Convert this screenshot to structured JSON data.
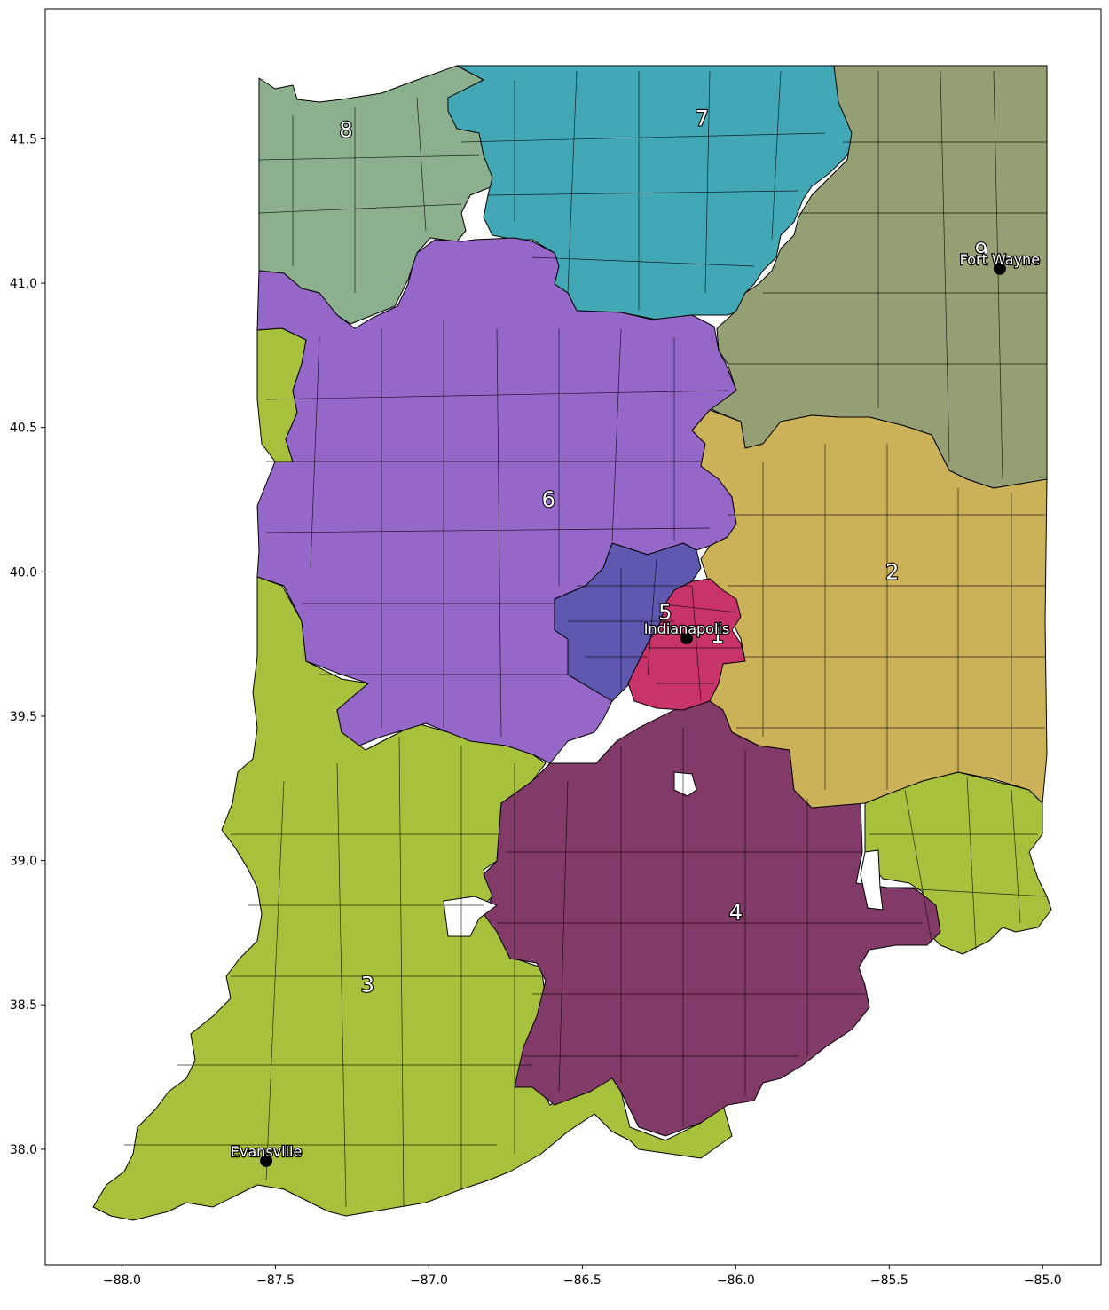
{
  "map": {
    "x_ticks": [
      "−88.0",
      "−87.5",
      "−87.0",
      "−86.5",
      "−86.0",
      "−85.5",
      "−85.0"
    ],
    "y_ticks": [
      "38.0",
      "38.5",
      "39.0",
      "39.5",
      "40.0",
      "40.5",
      "41.0",
      "41.5"
    ],
    "x_tick_values": [
      -88.0,
      -87.5,
      -87.0,
      -86.5,
      -86.0,
      -85.5,
      -85.0
    ],
    "y_tick_values": [
      38.0,
      38.5,
      39.0,
      39.5,
      40.0,
      40.5,
      41.0,
      41.5
    ],
    "x_range": [
      -88.25,
      -84.81
    ],
    "y_range": [
      37.6,
      41.95
    ],
    "districts": [
      {
        "label": "1",
        "color": "#c8336a",
        "lon": -86.06,
        "lat": 39.78
      },
      {
        "label": "2",
        "color": "#cbb259",
        "lon": -85.49,
        "lat": 40.0
      },
      {
        "label": "3",
        "color": "#a8c13c",
        "lon": -87.2,
        "lat": 38.57
      },
      {
        "label": "4",
        "color": "#823a68",
        "lon": -86.0,
        "lat": 38.82
      },
      {
        "label": "5",
        "color": "#5e58b0",
        "lon": -86.23,
        "lat": 39.86
      },
      {
        "label": "6",
        "color": "#9467c9",
        "lon": -86.61,
        "lat": 40.25
      },
      {
        "label": "7",
        "color": "#43a8b6",
        "lon": -86.11,
        "lat": 41.57
      },
      {
        "label": "8",
        "color": "#8caf8e",
        "lon": -87.27,
        "lat": 41.53
      },
      {
        "label": "9",
        "color": "#949f74",
        "lon": -85.2,
        "lat": 41.11
      }
    ],
    "cities": [
      {
        "name": "Fort Wayne",
        "lon": -85.14,
        "lat": 41.05
      },
      {
        "name": "Indianapolis",
        "lon": -86.16,
        "lat": 39.77
      },
      {
        "name": "Evansville",
        "lon": -87.53,
        "lat": 37.96
      }
    ]
  }
}
